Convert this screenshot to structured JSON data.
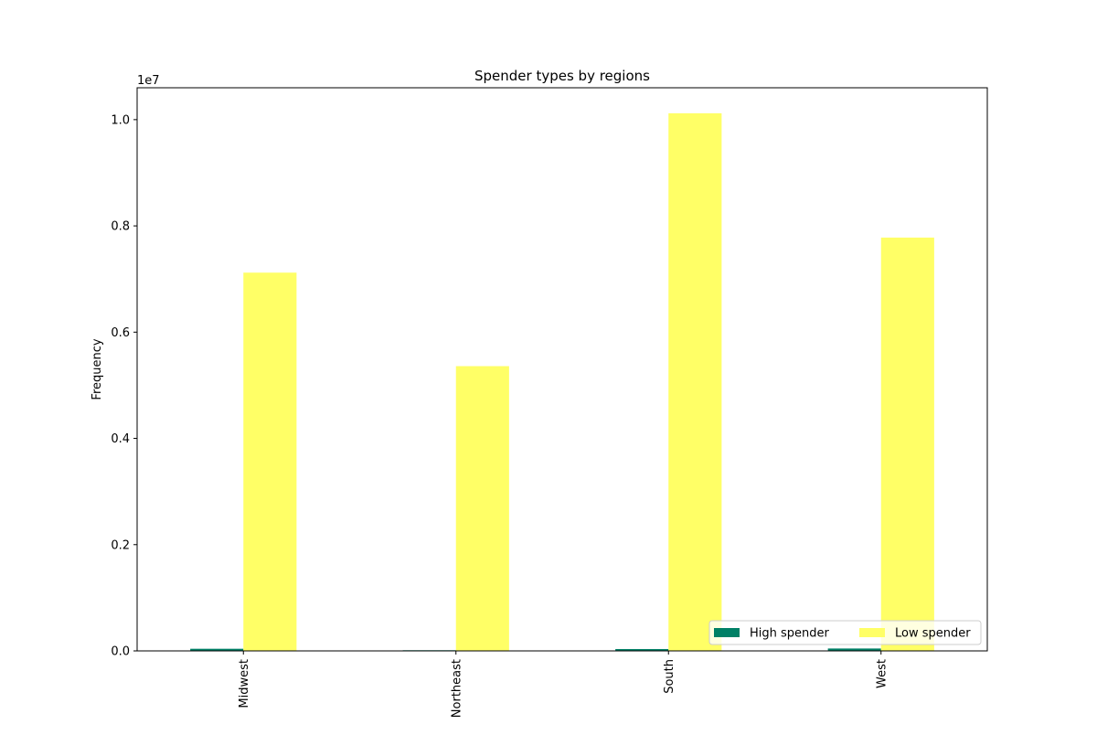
{
  "chart_data": {
    "type": "bar",
    "title": "Spender types by regions",
    "xlabel": "",
    "ylabel": "Frequency",
    "y_scale_label": "1e7",
    "categories": [
      "Midwest",
      "Northeast",
      "South",
      "West"
    ],
    "series": [
      {
        "name": "High spender",
        "color": "#008066",
        "values": [
          40000,
          12000,
          35000,
          45000
        ]
      },
      {
        "name": "Low spender",
        "color": "#ffff66",
        "values": [
          7120000,
          5360000,
          10120000,
          7780000
        ]
      }
    ],
    "ylim": [
      0,
      10600000
    ],
    "y_ticks": [
      0,
      2000000,
      4000000,
      6000000,
      8000000,
      10000000
    ],
    "y_tick_labels": [
      "0.0",
      "0.2",
      "0.4",
      "0.6",
      "0.8",
      "1.0"
    ],
    "grid": false,
    "legend_position": "lower-right"
  }
}
